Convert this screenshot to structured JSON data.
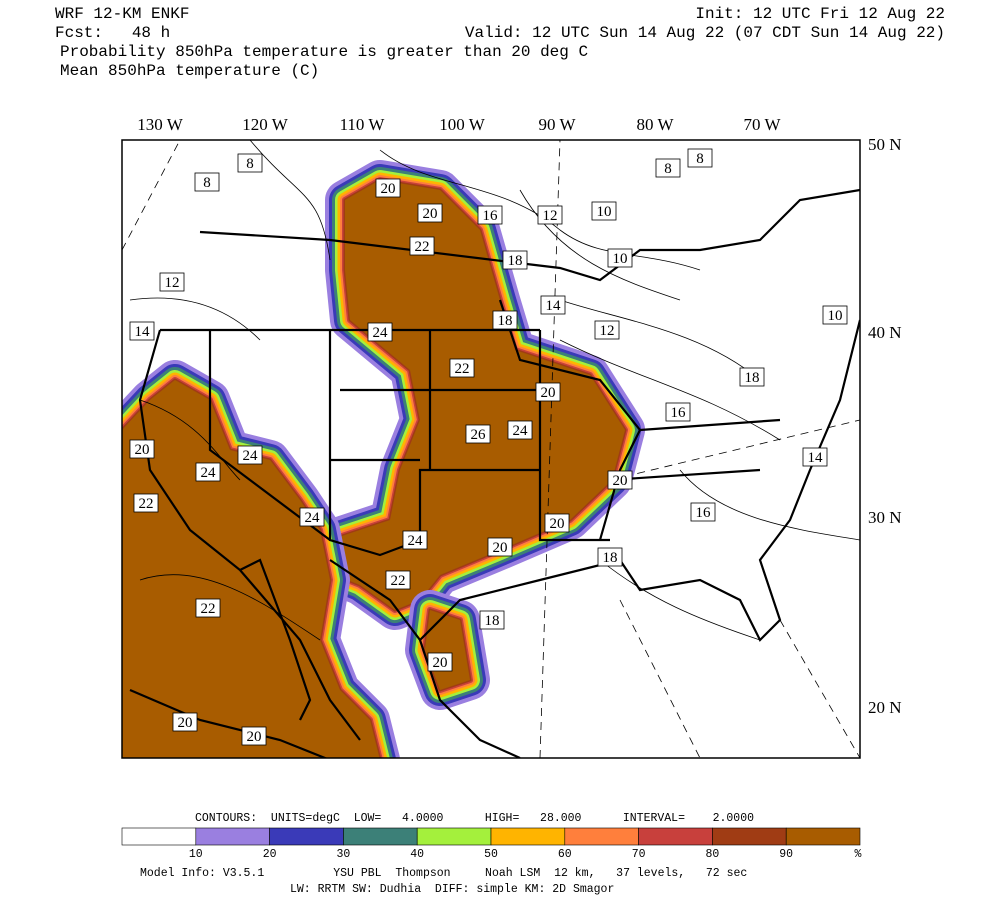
{
  "header": {
    "model": "WRF 12-KM ENKF",
    "init": "Init: 12 UTC Fri 12 Aug 22",
    "fcst": "Fcst:   48 h",
    "valid": "Valid: 12 UTC Sun 14 Aug 22 (07 CDT Sun 14 Aug 22)",
    "field1": "Probability 850hPa temperature is greater than 20 deg C",
    "field2": "Mean 850hPa temperature (C)"
  },
  "map": {
    "lon_labels": [
      "130 W",
      "120 W",
      "110 W",
      "100 W",
      "90 W",
      "80 W",
      "70 W"
    ],
    "lat_labels": [
      "50 N",
      "40 N",
      "30 N",
      "20 N"
    ],
    "contour_labels": [
      "8",
      "8",
      "8",
      "8",
      "20",
      "20",
      "16",
      "12",
      "10",
      "10",
      "18",
      "14",
      "12",
      "18",
      "12",
      "14",
      "24",
      "22",
      "22",
      "20",
      "18",
      "16",
      "26",
      "24",
      "20",
      "24",
      "24",
      "14",
      "20",
      "22",
      "24",
      "20",
      "16",
      "24",
      "20",
      "18",
      "22",
      "18",
      "20",
      "22",
      "20",
      "20",
      "10"
    ]
  },
  "footer": {
    "contours": "CONTOURS:  UNITS=degC  LOW=   4.0000      HIGH=   28.000      INTERVAL=    2.0000",
    "colorbar_colors": [
      "#ffffff",
      "#9a7fe0",
      "#3a3ab8",
      "#3c8078",
      "#a4f03c",
      "#ffb400",
      "#ff7f3c",
      "#c8403c",
      "#a03c14",
      "#a85c00"
    ],
    "colorbar_labels": [
      "10",
      "20",
      "30",
      "40",
      "50",
      "60",
      "70",
      "80",
      "90",
      "%"
    ],
    "model_info": "Model Info: V3.5.1          YSU PBL  Thompson     Noah LSM  12 km,   37 levels,   72 sec",
    "model_info2": "LW: RRTM SW: Dudhia  DIFF: simple KM: 2D Smagor"
  }
}
